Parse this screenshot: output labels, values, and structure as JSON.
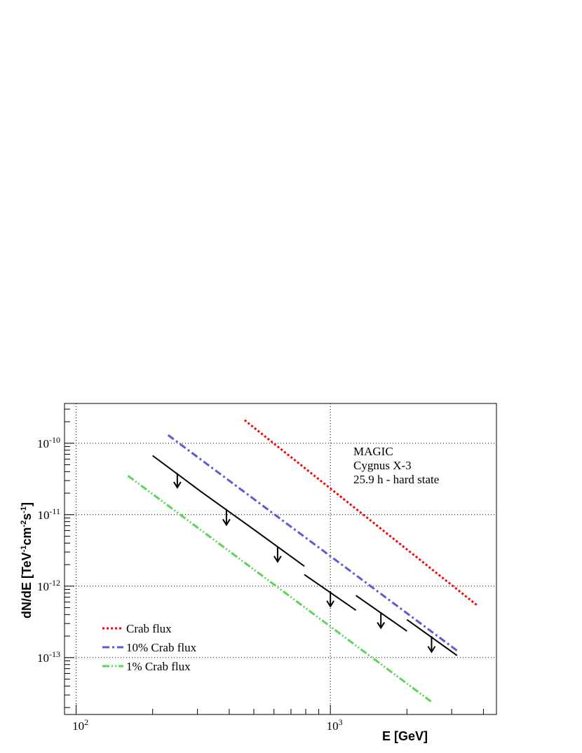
{
  "chart_data": {
    "type": "line",
    "xlabel": "E [GeV]",
    "ylabel": "dN/dE [TeV-1cm-2s-1]",
    "ylabel_parts": {
      "a": "dN/dE [TeV",
      "b": "-1",
      "c": "cm",
      "d": "-2",
      "e": "s",
      "f": "-1",
      "g": "]"
    },
    "xscale": "log",
    "yscale": "log",
    "xlim": [
      90,
      4500
    ],
    "ylim": [
      1.6e-14,
      3.6e-10
    ],
    "grid": true,
    "x_ticks": [
      {
        "value": 100,
        "base": "10",
        "exp": "2"
      },
      {
        "value": 1000,
        "base": "10",
        "exp": "3"
      }
    ],
    "y_ticks": [
      {
        "value": 1e-10,
        "base": "10",
        "exp": "-10"
      },
      {
        "value": 1e-11,
        "base": "10",
        "exp": "-11"
      },
      {
        "value": 1e-12,
        "base": "10",
        "exp": "-12"
      },
      {
        "value": 1e-13,
        "base": "10",
        "exp": "-13"
      }
    ],
    "annotation_lines": [
      "MAGIC",
      "Cygnus X-3",
      "25.9 h - hard state"
    ],
    "legend_position": "bottom-left",
    "series": [
      {
        "name": "Crab flux",
        "style": "dotted",
        "color": "#ff0000",
        "x": [
          460,
          3800
        ],
        "y": [
          2.1e-10,
          5.3e-13
        ]
      },
      {
        "name": "10% Crab flux",
        "style": "dashdot",
        "color": "#5b5bd6",
        "x": [
          230,
          3200
        ],
        "y": [
          1.3e-10,
          1.2e-13
        ]
      },
      {
        "name": "1% Crab flux",
        "style": "dashdotdot",
        "color": "#5bd65b",
        "x": [
          160,
          2500
        ],
        "y": [
          3.5e-11,
          2.4e-14
        ]
      }
    ],
    "upper_limits": [
      {
        "x": [
          200,
          310
        ],
        "y": [
          6.7e-11,
          2.1e-11
        ],
        "arrow_x": 250,
        "arrow_y": [
          3.8e-11,
          2.4e-11
        ]
      },
      {
        "x": [
          310,
          500
        ],
        "y": [
          2.1e-11,
          6.2e-12
        ],
        "arrow_x": 390,
        "arrow_y": [
          1.2e-11,
          7.2e-12
        ]
      },
      {
        "x": [
          500,
          790
        ],
        "y": [
          6.2e-12,
          1.9e-12
        ],
        "arrow_x": 620,
        "arrow_y": [
          3.6e-12,
          2.2e-12
        ]
      },
      {
        "x": [
          790,
          1260
        ],
        "y": [
          1.45e-12,
          4.6e-13
        ],
        "arrow_x": 1000,
        "arrow_y": [
          8.5e-13,
          5.2e-13
        ]
      },
      {
        "x": [
          1260,
          2000
        ],
        "y": [
          7.4e-13,
          2.35e-13
        ],
        "arrow_x": 1580,
        "arrow_y": [
          4.3e-13,
          2.6e-13
        ]
      },
      {
        "x": [
          2000,
          3150
        ],
        "y": [
          3.4e-13,
          1.07e-13
        ],
        "arrow_x": 2500,
        "arrow_y": [
          2e-13,
          1.2e-13
        ]
      }
    ]
  }
}
